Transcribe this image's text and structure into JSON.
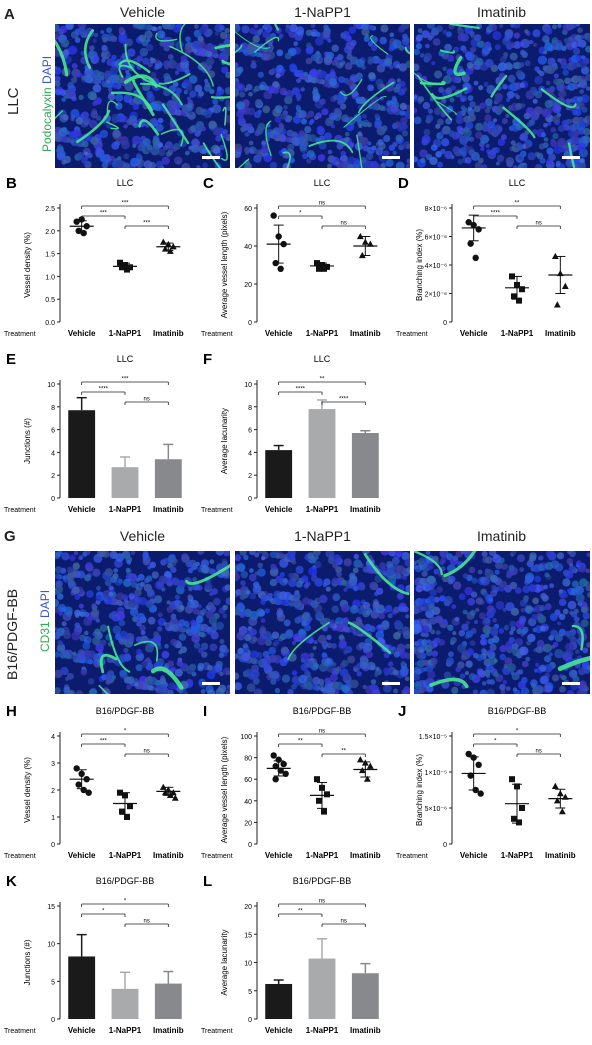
{
  "colors": {
    "dapi": "#1a2ea8",
    "vessel": "#3fe08a",
    "black": "#1a1a1a",
    "lightgray": "#a9aaac",
    "midgray": "#88898c"
  },
  "sectionA": {
    "letter": "A",
    "row_label": "LLC",
    "stain_green": "Podocalyxin",
    "stain_blue": "DAPI",
    "titles": [
      "Vehicle",
      "1-NaPP1",
      "Imatinib"
    ]
  },
  "sectionG": {
    "letter": "G",
    "row_label": "B16/PDGF-BB",
    "stain_green": "CD31",
    "stain_blue": "DAPI",
    "titles": [
      "Vehicle",
      "1-NaPP1",
      "Imatinib"
    ]
  },
  "treatment_label": "Treatment",
  "chart_data": [
    {
      "letter": "B",
      "type": "scatter",
      "title": "LLC",
      "ylabel": "Vessel density (%)",
      "categories": [
        "Vehicle",
        "1-NaPP1",
        "Imatinib"
      ],
      "yticks": [
        "0.0",
        "0.5",
        "1.0",
        "1.5",
        "2.0",
        "2.5"
      ],
      "ylim": [
        0,
        2.5
      ],
      "points": [
        [
          2.2,
          2.25,
          2.1,
          2.0,
          1.95
        ],
        [
          1.3,
          1.25,
          1.2,
          1.2,
          1.15
        ],
        [
          1.75,
          1.7,
          1.65,
          1.6,
          1.55
        ]
      ],
      "means": [
        2.1,
        1.22,
        1.65
      ],
      "sd": [
        0.12,
        0.07,
        0.08
      ],
      "sig": [
        {
          "a": 0,
          "b": 1,
          "label": "***"
        },
        {
          "a": 0,
          "b": 2,
          "label": "***"
        },
        {
          "a": 1,
          "b": 2,
          "label": "***"
        }
      ]
    },
    {
      "letter": "C",
      "type": "scatter",
      "title": "LLC",
      "ylabel": "Average vessel length (pixels)",
      "categories": [
        "Vehicle",
        "1-NaPP1",
        "Imatinib"
      ],
      "yticks": [
        "0",
        "20",
        "40",
        "60"
      ],
      "ylim": [
        0,
        60
      ],
      "points": [
        [
          56,
          45,
          41,
          31,
          28
        ],
        [
          31,
          30,
          29,
          28,
          28
        ],
        [
          45,
          42,
          41,
          35
        ]
      ],
      "means": [
        41,
        29.5,
        40
      ],
      "sd": [
        10,
        1.5,
        5
      ],
      "sig": [
        {
          "a": 0,
          "b": 1,
          "label": "*"
        },
        {
          "a": 0,
          "b": 2,
          "label": "ns"
        },
        {
          "a": 1,
          "b": 2,
          "label": "ns"
        }
      ]
    },
    {
      "letter": "D",
      "type": "scatter",
      "title": "LLC",
      "ylabel": "Branching index (%)",
      "categories": [
        "Vehicle",
        "1-NaPP1",
        "Imatinib"
      ],
      "yticks": [
        "0",
        "2×10⁻⁶",
        "4×10⁻⁶",
        "6×10⁻⁶",
        "8×10⁻⁶"
      ],
      "ylim": [
        0,
        8
      ],
      "points": [
        [
          7.0,
          6.8,
          6.5,
          5.5,
          4.5
        ],
        [
          3.2,
          2.6,
          2.3,
          1.8,
          1.5
        ],
        [
          4.6,
          3.4,
          2.5,
          1.2
        ]
      ],
      "means": [
        6.6,
        2.4,
        3.3
      ],
      "sd": [
        0.9,
        0.8,
        1.3
      ],
      "sig": [
        {
          "a": 0,
          "b": 1,
          "label": "****"
        },
        {
          "a": 0,
          "b": 2,
          "label": "**"
        },
        {
          "a": 1,
          "b": 2,
          "label": "ns"
        }
      ]
    },
    {
      "letter": "E",
      "type": "bar",
      "title": "LLC",
      "ylabel": "Junctions (#)",
      "categories": [
        "Vehicle",
        "1-NaPP1",
        "Imatinib"
      ],
      "yticks": [
        "0",
        "2",
        "4",
        "6",
        "8",
        "10"
      ],
      "ylim": [
        0,
        10
      ],
      "values": [
        7.7,
        2.7,
        3.4
      ],
      "err": [
        1.1,
        0.9,
        1.3
      ],
      "sig": [
        {
          "a": 0,
          "b": 1,
          "label": "****"
        },
        {
          "a": 0,
          "b": 2,
          "label": "***"
        },
        {
          "a": 1,
          "b": 2,
          "label": "ns"
        }
      ]
    },
    {
      "letter": "F",
      "type": "bar",
      "title": "LLC",
      "ylabel": "Average lacunarity",
      "categories": [
        "Vehicle",
        "1-NaPP1",
        "Imatinib"
      ],
      "yticks": [
        "0",
        "2",
        "4",
        "6",
        "8",
        "10"
      ],
      "ylim": [
        0,
        10
      ],
      "values": [
        4.2,
        7.8,
        5.7
      ],
      "err": [
        0.4,
        0.8,
        0.2
      ],
      "sig": [
        {
          "a": 0,
          "b": 1,
          "label": "****"
        },
        {
          "a": 0,
          "b": 2,
          "label": "**"
        },
        {
          "a": 1,
          "b": 2,
          "label": "****"
        }
      ]
    },
    {
      "letter": "H",
      "type": "scatter",
      "title": "B16/PDGF-BB",
      "ylabel": "Vessel density (%)",
      "categories": [
        "Vehicle",
        "1-NaPP1",
        "Imatinib"
      ],
      "yticks": [
        "0",
        "1",
        "2",
        "3",
        "4"
      ],
      "ylim": [
        0,
        4
      ],
      "points": [
        [
          2.8,
          2.6,
          2.4,
          2.2,
          2.0,
          1.9
        ],
        [
          1.9,
          1.8,
          1.4,
          1.2,
          1.0
        ],
        [
          2.1,
          2.0,
          1.9,
          1.9,
          1.8,
          1.7
        ]
      ],
      "means": [
        2.4,
        1.5,
        1.95
      ],
      "sd": [
        0.35,
        0.4,
        0.15
      ],
      "sig": [
        {
          "a": 0,
          "b": 1,
          "label": "***"
        },
        {
          "a": 0,
          "b": 2,
          "label": "*"
        },
        {
          "a": 1,
          "b": 2,
          "label": "ns"
        }
      ]
    },
    {
      "letter": "I",
      "type": "scatter",
      "title": "B16/PDGF-BB",
      "ylabel": "Average vessel length (pixels)",
      "categories": [
        "Vehicle",
        "1-NaPP1",
        "Imatinib"
      ],
      "yticks": [
        "0",
        "20",
        "40",
        "60",
        "80",
        "100"
      ],
      "ylim": [
        0,
        100
      ],
      "points": [
        [
          82,
          78,
          74,
          72,
          68,
          65,
          60
        ],
        [
          60,
          52,
          46,
          40,
          30
        ],
        [
          78,
          75,
          72,
          68,
          60
        ]
      ],
      "means": [
        70,
        45,
        69
      ],
      "sd": [
        7,
        12,
        7
      ],
      "sig": [
        {
          "a": 0,
          "b": 1,
          "label": "**"
        },
        {
          "a": 0,
          "b": 2,
          "label": "ns"
        },
        {
          "a": 1,
          "b": 2,
          "label": "**"
        }
      ]
    },
    {
      "letter": "J",
      "type": "scatter",
      "title": "B16/PDGF-BB",
      "ylabel": "Branching index (%)",
      "categories": [
        "Vehicle",
        "1-NaPP1",
        "Imatinib"
      ],
      "yticks": [
        "0",
        "5×10⁻⁶",
        "1×10⁻⁵",
        "1.5×10⁻⁵"
      ],
      "ylim": [
        0,
        15
      ],
      "points": [
        [
          12.5,
          12,
          11,
          9.5,
          7.5,
          7
        ],
        [
          9,
          8,
          5,
          3.5,
          3
        ],
        [
          8,
          7,
          6.5,
          6,
          4.5
        ]
      ],
      "means": [
        9.8,
        5.6,
        6.3
      ],
      "sd": [
        2.3,
        2.7,
        1.3
      ],
      "sig": [
        {
          "a": 0,
          "b": 1,
          "label": "*"
        },
        {
          "a": 0,
          "b": 2,
          "label": "*"
        },
        {
          "a": 1,
          "b": 2,
          "label": "ns"
        }
      ]
    },
    {
      "letter": "K",
      "type": "bar",
      "title": "B16/PDGF-BB",
      "ylabel": "Junctions (#)",
      "categories": [
        "Vehicle",
        "1-NaPP1",
        "Imatinib"
      ],
      "yticks": [
        "0",
        "5",
        "10",
        "15"
      ],
      "ylim": [
        0,
        15
      ],
      "values": [
        8.3,
        4.0,
        4.7
      ],
      "err": [
        2.9,
        2.2,
        1.6
      ],
      "sig": [
        {
          "a": 0,
          "b": 1,
          "label": "*"
        },
        {
          "a": 0,
          "b": 2,
          "label": "*"
        },
        {
          "a": 1,
          "b": 2,
          "label": "ns"
        }
      ]
    },
    {
      "letter": "L",
      "type": "bar",
      "title": "B16/PDGF-BB",
      "ylabel": "Average lacunarity",
      "categories": [
        "Vehicle",
        "1-NaPP1",
        "Imatinib"
      ],
      "yticks": [
        "0",
        "5",
        "10",
        "15",
        "20"
      ],
      "ylim": [
        0,
        20
      ],
      "values": [
        6.2,
        10.7,
        8.1
      ],
      "err": [
        0.7,
        3.5,
        1.7
      ],
      "sig": [
        {
          "a": 0,
          "b": 1,
          "label": "**"
        },
        {
          "a": 0,
          "b": 2,
          "label": "ns"
        },
        {
          "a": 1,
          "b": 2,
          "label": "ns"
        }
      ]
    }
  ]
}
